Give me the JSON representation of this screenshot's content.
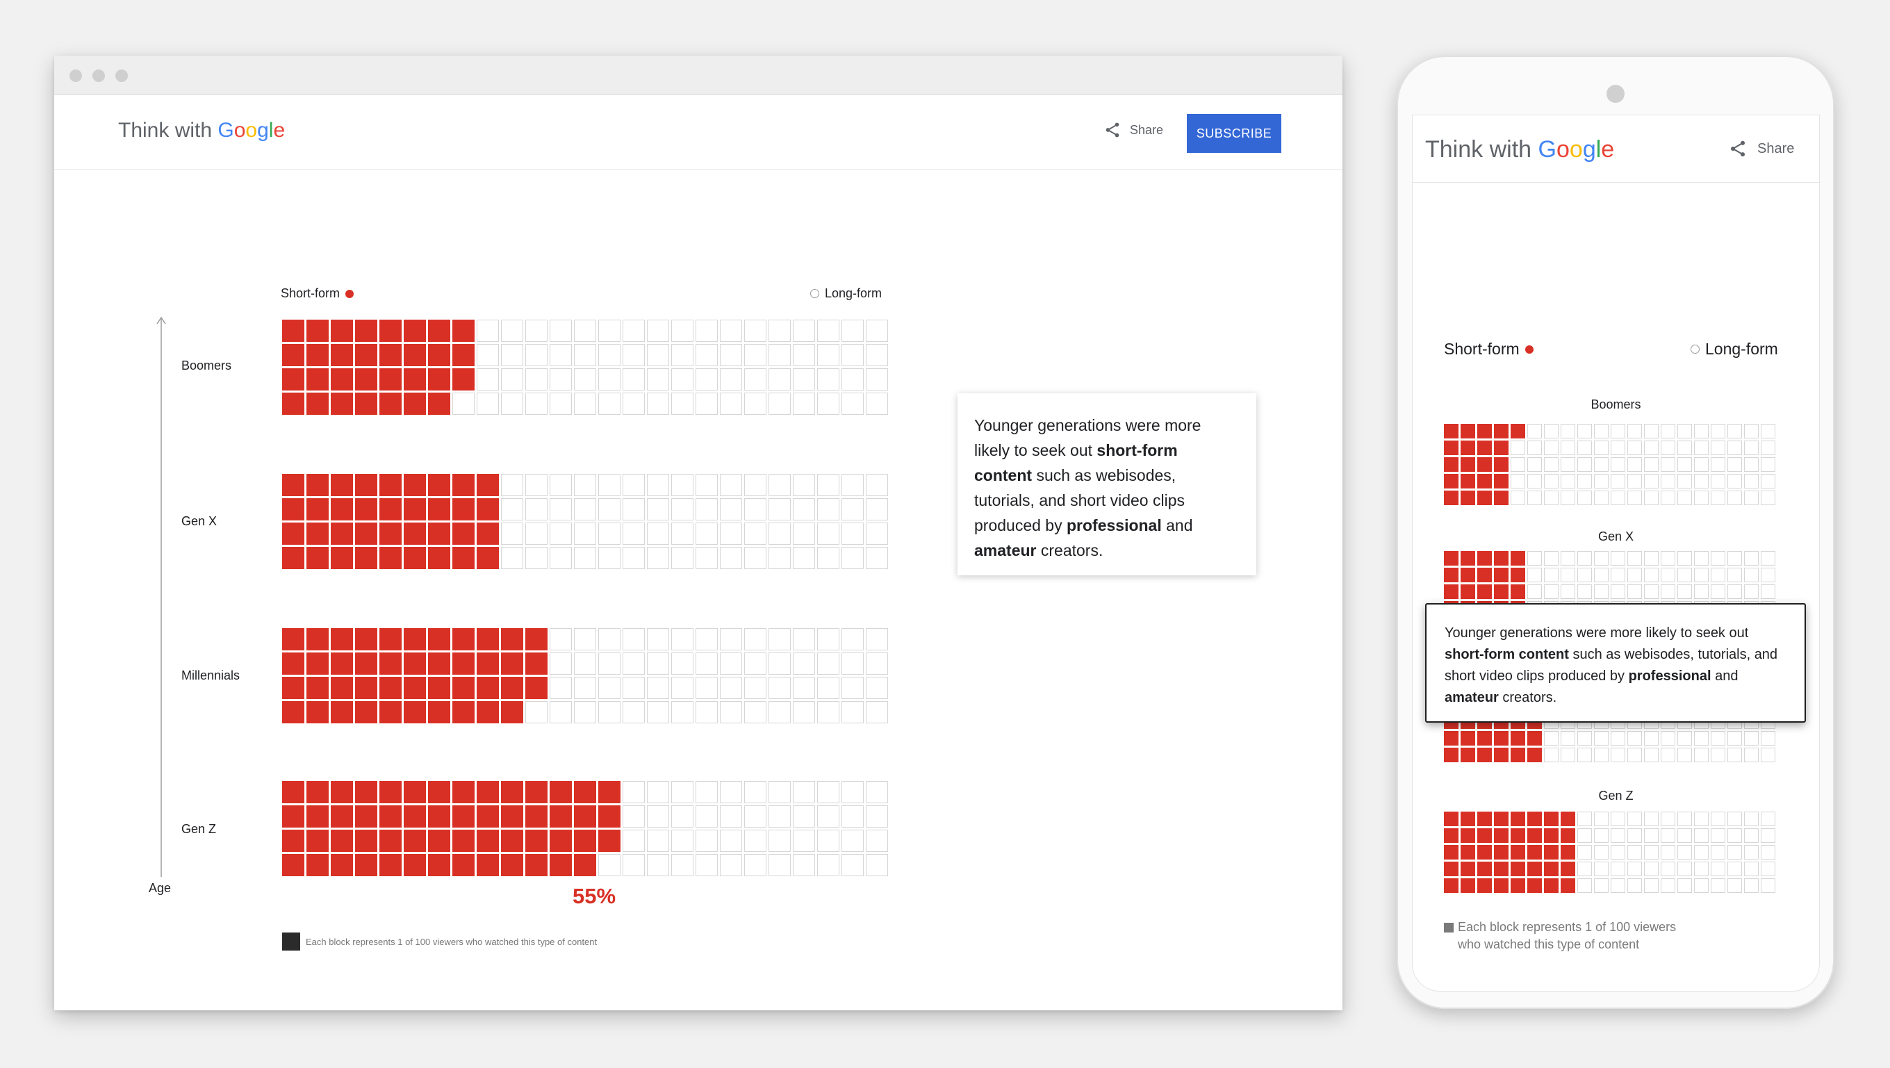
{
  "brand": {
    "prefix": "Think with",
    "google": "Google"
  },
  "header": {
    "share_label": "Share",
    "subscribe_label": "SUBSCRIBE"
  },
  "legend": {
    "short_form": "Short-form",
    "long_form": "Long-form"
  },
  "axis": {
    "label": "Age"
  },
  "highlight_value": "55%",
  "footnote": "Each block represents 1 of 100 viewers who watched this type of content",
  "mobile_footnote_line1": "Each block represents 1 of 100 viewers",
  "mobile_footnote_line2": "who watched this type of content",
  "callout": {
    "p1": "Younger generations were more likely to seek out ",
    "b1": "short-form content",
    "p2": " such as webisodes, tutorials, and short video clips produced by ",
    "b2": "professional",
    "p3": " and ",
    "b3": "amateur",
    "p4": " creators."
  },
  "colors": {
    "short_form": "#d93025",
    "subscribe": "#3367d6",
    "empty_border": "#d6d6d6"
  },
  "icons": {
    "share": "share-icon",
    "short_form_marker": "filled-dot",
    "long_form_marker": "hollow-dot"
  },
  "chart_data": {
    "type": "waffle",
    "unit": "1 block = 1 of 100 viewers",
    "series": [
      {
        "name": "Short-form"
      },
      {
        "name": "Long-form"
      }
    ],
    "categories": [
      "Boomers",
      "Gen X",
      "Millennials",
      "Gen Z"
    ],
    "short_form_desktop": [
      31,
      36,
      43,
      55
    ],
    "short_form_mobile": [
      21,
      25,
      32,
      40
    ],
    "total_blocks": 100
  }
}
